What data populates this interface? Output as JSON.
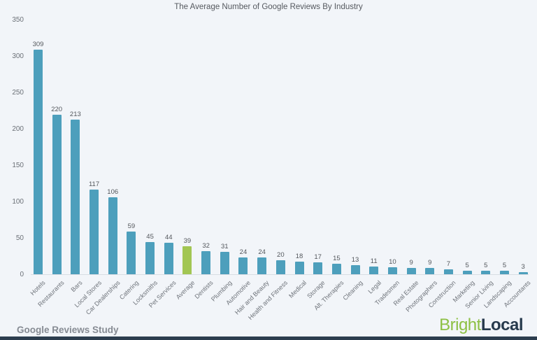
{
  "page": {
    "background": "#f2f5f9",
    "footer_left": "Google Reviews Study",
    "logo": {
      "part1": "Bright",
      "part2": "Local",
      "part1_color": "#8dc044",
      "part2_color": "#273a4d"
    },
    "bottom_strip_color": "#2c3d4e"
  },
  "chart_data": {
    "type": "bar",
    "title": "The Average Number of Google Reviews By Industry",
    "categories": [
      "Hotels",
      "Restaurants",
      "Bars",
      "Local Stores",
      "Car Dealerships",
      "Catering",
      "Locksmiths",
      "Pet Services",
      "Average",
      "Dentists",
      "Plumbing",
      "Automotive",
      "Hair and Beauty",
      "Health and Fitness",
      "Medical",
      "Storage",
      "Alt. Therapies",
      "Cleaning",
      "Legal",
      "Tradesmen",
      "Real Estate",
      "Photographers",
      "Construction",
      "Marketing",
      "Senior Living",
      "Landscaping",
      "Accountants"
    ],
    "values": [
      309,
      220,
      213,
      117,
      106,
      59,
      45,
      44,
      39,
      32,
      31,
      24,
      24,
      20,
      18,
      17,
      15,
      13,
      11,
      10,
      9,
      9,
      7,
      5,
      5,
      5,
      3
    ],
    "highlight_category": "Average",
    "bar_color": "#4d9fbc",
    "highlight_color": "#a2c653",
    "xlabel": "",
    "ylabel": "",
    "ylim": [
      0,
      350
    ],
    "yticks": [
      0,
      50,
      100,
      150,
      200,
      250,
      300,
      350
    ],
    "grid": false,
    "legend": "none",
    "value_labels": true,
    "x_tick_rotation": -45
  }
}
